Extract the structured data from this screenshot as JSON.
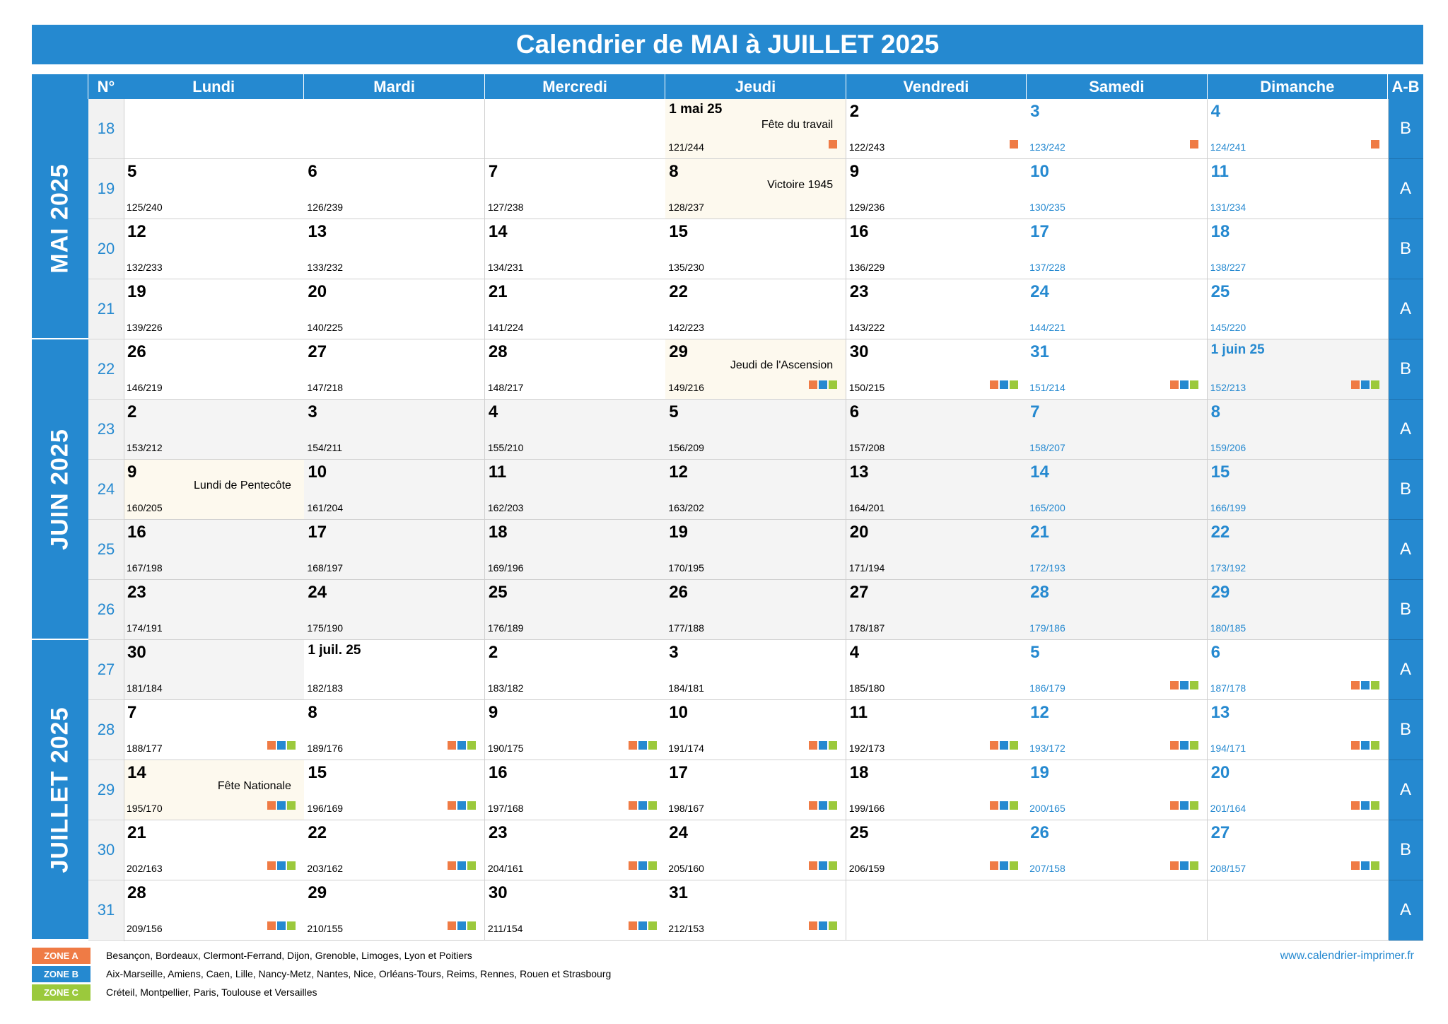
{
  "title": "Calendrier de MAI à JUILLET 2025",
  "headers": {
    "week": "N°",
    "days": [
      "Lundi",
      "Mardi",
      "Mercredi",
      "Jeudi",
      "Vendredi",
      "Samedi",
      "Dimanche"
    ],
    "ab": "A-B"
  },
  "months": [
    {
      "label": "MAI 2025",
      "start_row": 0,
      "row_count": 4
    },
    {
      "label": "JUIN 2025",
      "start_row": 4,
      "row_count": 5
    },
    {
      "label": "JUILLET 2025",
      "start_row": 9,
      "row_count": 5
    }
  ],
  "rows": [
    {
      "week": "18",
      "ab": "B",
      "days": [
        null,
        null,
        null,
        {
          "d": "1 mai 25",
          "c": "121/244",
          "h": "Fête du travail",
          "zones": "a"
        },
        {
          "d": "2",
          "c": "122/243",
          "zones": "a"
        },
        {
          "d": "3",
          "c": "123/242",
          "zones": "a"
        },
        {
          "d": "4",
          "c": "124/241",
          "zones": "a"
        }
      ]
    },
    {
      "week": "19",
      "ab": "A",
      "days": [
        {
          "d": "5",
          "c": "125/240"
        },
        {
          "d": "6",
          "c": "126/239"
        },
        {
          "d": "7",
          "c": "127/238"
        },
        {
          "d": "8",
          "c": "128/237",
          "h": "Victoire 1945"
        },
        {
          "d": "9",
          "c": "129/236"
        },
        {
          "d": "10",
          "c": "130/235"
        },
        {
          "d": "11",
          "c": "131/234"
        }
      ]
    },
    {
      "week": "20",
      "ab": "B",
      "days": [
        {
          "d": "12",
          "c": "132/233"
        },
        {
          "d": "13",
          "c": "133/232"
        },
        {
          "d": "14",
          "c": "134/231"
        },
        {
          "d": "15",
          "c": "135/230"
        },
        {
          "d": "16",
          "c": "136/229"
        },
        {
          "d": "17",
          "c": "137/228"
        },
        {
          "d": "18",
          "c": "138/227"
        }
      ]
    },
    {
      "week": "21",
      "ab": "A",
      "days": [
        {
          "d": "19",
          "c": "139/226"
        },
        {
          "d": "20",
          "c": "140/225"
        },
        {
          "d": "21",
          "c": "141/224"
        },
        {
          "d": "22",
          "c": "142/223"
        },
        {
          "d": "23",
          "c": "143/222"
        },
        {
          "d": "24",
          "c": "144/221"
        },
        {
          "d": "25",
          "c": "145/220"
        }
      ]
    },
    {
      "week": "22",
      "ab": "B",
      "days": [
        {
          "d": "26",
          "c": "146/219"
        },
        {
          "d": "27",
          "c": "147/218"
        },
        {
          "d": "28",
          "c": "148/217"
        },
        {
          "d": "29",
          "c": "149/216",
          "h": "Jeudi de l'Ascension",
          "zones": "abc"
        },
        {
          "d": "30",
          "c": "150/215",
          "zones": "abc"
        },
        {
          "d": "31",
          "c": "151/214",
          "zones": "abc"
        },
        {
          "d": "1 juin 25",
          "c": "152/213",
          "zones": "abc",
          "alt": true
        }
      ]
    },
    {
      "week": "23",
      "ab": "A",
      "alt": true,
      "days": [
        {
          "d": "2",
          "c": "153/212"
        },
        {
          "d": "3",
          "c": "154/211"
        },
        {
          "d": "4",
          "c": "155/210"
        },
        {
          "d": "5",
          "c": "156/209"
        },
        {
          "d": "6",
          "c": "157/208"
        },
        {
          "d": "7",
          "c": "158/207"
        },
        {
          "d": "8",
          "c": "159/206"
        }
      ]
    },
    {
      "week": "24",
      "ab": "B",
      "alt": true,
      "days": [
        {
          "d": "9",
          "c": "160/205",
          "h": "Lundi de Pentecôte"
        },
        {
          "d": "10",
          "c": "161/204"
        },
        {
          "d": "11",
          "c": "162/203"
        },
        {
          "d": "12",
          "c": "163/202"
        },
        {
          "d": "13",
          "c": "164/201"
        },
        {
          "d": "14",
          "c": "165/200"
        },
        {
          "d": "15",
          "c": "166/199"
        }
      ]
    },
    {
      "week": "25",
      "ab": "A",
      "alt": true,
      "days": [
        {
          "d": "16",
          "c": "167/198"
        },
        {
          "d": "17",
          "c": "168/197"
        },
        {
          "d": "18",
          "c": "169/196"
        },
        {
          "d": "19",
          "c": "170/195"
        },
        {
          "d": "20",
          "c": "171/194"
        },
        {
          "d": "21",
          "c": "172/193"
        },
        {
          "d": "22",
          "c": "173/192"
        }
      ]
    },
    {
      "week": "26",
      "ab": "B",
      "alt": true,
      "days": [
        {
          "d": "23",
          "c": "174/191"
        },
        {
          "d": "24",
          "c": "175/190"
        },
        {
          "d": "25",
          "c": "176/189"
        },
        {
          "d": "26",
          "c": "177/188"
        },
        {
          "d": "27",
          "c": "178/187"
        },
        {
          "d": "28",
          "c": "179/186"
        },
        {
          "d": "29",
          "c": "180/185"
        }
      ]
    },
    {
      "week": "27",
      "ab": "A",
      "days": [
        {
          "d": "30",
          "c": "181/184",
          "alt": true
        },
        {
          "d": "1 juil. 25",
          "c": "182/183"
        },
        {
          "d": "2",
          "c": "183/182"
        },
        {
          "d": "3",
          "c": "184/181"
        },
        {
          "d": "4",
          "c": "185/180"
        },
        {
          "d": "5",
          "c": "186/179",
          "zones": "abc"
        },
        {
          "d": "6",
          "c": "187/178",
          "zones": "abc"
        }
      ]
    },
    {
      "week": "28",
      "ab": "B",
      "days": [
        {
          "d": "7",
          "c": "188/177",
          "zones": "abc"
        },
        {
          "d": "8",
          "c": "189/176",
          "zones": "abc"
        },
        {
          "d": "9",
          "c": "190/175",
          "zones": "abc"
        },
        {
          "d": "10",
          "c": "191/174",
          "zones": "abc"
        },
        {
          "d": "11",
          "c": "192/173",
          "zones": "abc"
        },
        {
          "d": "12",
          "c": "193/172",
          "zones": "abc"
        },
        {
          "d": "13",
          "c": "194/171",
          "zones": "abc"
        }
      ]
    },
    {
      "week": "29",
      "ab": "A",
      "days": [
        {
          "d": "14",
          "c": "195/170",
          "h": "Fête Nationale",
          "zones": "abc"
        },
        {
          "d": "15",
          "c": "196/169",
          "zones": "abc"
        },
        {
          "d": "16",
          "c": "197/168",
          "zones": "abc"
        },
        {
          "d": "17",
          "c": "198/167",
          "zones": "abc"
        },
        {
          "d": "18",
          "c": "199/166",
          "zones": "abc"
        },
        {
          "d": "19",
          "c": "200/165",
          "zones": "abc"
        },
        {
          "d": "20",
          "c": "201/164",
          "zones": "abc"
        }
      ]
    },
    {
      "week": "30",
      "ab": "B",
      "days": [
        {
          "d": "21",
          "c": "202/163",
          "zones": "abc"
        },
        {
          "d": "22",
          "c": "203/162",
          "zones": "abc"
        },
        {
          "d": "23",
          "c": "204/161",
          "zones": "abc"
        },
        {
          "d": "24",
          "c": "205/160",
          "zones": "abc"
        },
        {
          "d": "25",
          "c": "206/159",
          "zones": "abc"
        },
        {
          "d": "26",
          "c": "207/158",
          "zones": "abc"
        },
        {
          "d": "27",
          "c": "208/157",
          "zones": "abc"
        }
      ]
    },
    {
      "week": "31",
      "ab": "A",
      "days": [
        {
          "d": "28",
          "c": "209/156",
          "zones": "abc"
        },
        {
          "d": "29",
          "c": "210/155",
          "zones": "abc"
        },
        {
          "d": "30",
          "c": "211/154",
          "zones": "abc"
        },
        {
          "d": "31",
          "c": "212/153",
          "zones": "abc"
        },
        null,
        null,
        null
      ]
    }
  ],
  "legend": [
    {
      "zone": "ZONE A",
      "color": "#ef7b45",
      "cities": "Besançon, Bordeaux, Clermont-Ferrand, Dijon, Grenoble, Limoges, Lyon et Poitiers"
    },
    {
      "zone": "ZONE B",
      "color": "#2589d0",
      "cities": "Aix-Marseille, Amiens, Caen, Lille, Nancy-Metz, Nantes, Nice, Orléans-Tours, Reims, Rennes, Rouen et Strasbourg"
    },
    {
      "zone": "ZONE C",
      "color": "#9bc93c",
      "cities": "Créteil, Montpellier, Paris, Toulouse et Versailles"
    }
  ],
  "website": "www.calendrier-imprimer.fr",
  "colors": {
    "accent": "#2589d0",
    "zone_a": "#ef7b45",
    "zone_b": "#2589d0",
    "zone_c": "#9bc93c",
    "holiday_bg": "#fdf9ee",
    "alt_bg": "#f4f4f4"
  }
}
